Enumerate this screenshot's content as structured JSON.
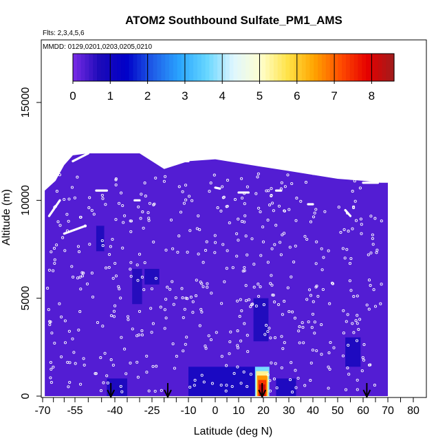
{
  "chart_data": {
    "type": "heatmap",
    "title": "ATOM2 Southbound Sulfate_PM1_AMS",
    "subtitle_flights": "Flts: 2,3,4,5,6",
    "subtitle_dates": "MMDD: 0129,0201,0203,0205,0210",
    "xlabel": "Latitude (deg N)",
    "ylabel": "Altitude (m)",
    "xlim": [
      -70,
      80
    ],
    "ylim": [
      0,
      17500
    ],
    "x_ticks": [
      -70,
      -55,
      -40,
      -25,
      -10,
      0,
      10,
      20,
      30,
      40,
      50,
      60,
      70,
      80
    ],
    "y_ticks": [
      0,
      5000,
      10000,
      15000
    ],
    "colorbar": {
      "range": [
        0,
        8.6
      ],
      "ticks": [
        0,
        1,
        2,
        3,
        4,
        5,
        6,
        7,
        8
      ],
      "colors": [
        "#7a2be6",
        "#1c0ab8",
        "#0000c8",
        "#1f5ee8",
        "#2aa6ff",
        "#66d6ff",
        "#dff6ff",
        "#ffffd0",
        "#ffe44a",
        "#ffa500",
        "#ff4d00",
        "#e60000",
        "#a01c1c"
      ]
    },
    "field": {
      "background_value": 0.3,
      "low_value_patches": [
        {
          "lat": [
            -10,
            20
          ],
          "alt": [
            0,
            1500
          ],
          "value": 1.0
        },
        {
          "lat": [
            -43,
            -35
          ],
          "alt": [
            0,
            900
          ],
          "value": 0.9
        },
        {
          "lat": [
            25,
            33
          ],
          "alt": [
            0,
            900
          ],
          "value": 0.9
        },
        {
          "lat": [
            53,
            59
          ],
          "alt": [
            1500,
            3000
          ],
          "value": 0.9
        },
        {
          "lat": [
            -28,
            -22
          ],
          "alt": [
            5700,
            6500
          ],
          "value": 0.8
        },
        {
          "lat": [
            -47,
            -44
          ],
          "alt": [
            7400,
            8700
          ],
          "value": 0.8
        },
        {
          "lat": [
            16,
            22
          ],
          "alt": [
            2800,
            5000
          ],
          "value": 0.8
        },
        {
          "lat": [
            -33,
            -29
          ],
          "alt": [
            4700,
            6500
          ],
          "value": 0.7
        }
      ],
      "hot_spot": {
        "lat": [
          17,
          22
        ],
        "alt": [
          0,
          1500
        ],
        "peak_value": 8.2
      }
    },
    "flight_track_label": "sample points (white circles)",
    "arrows_at_latitude": [
      -41.5,
      -18.5,
      19.5,
      61.5
    ]
  }
}
